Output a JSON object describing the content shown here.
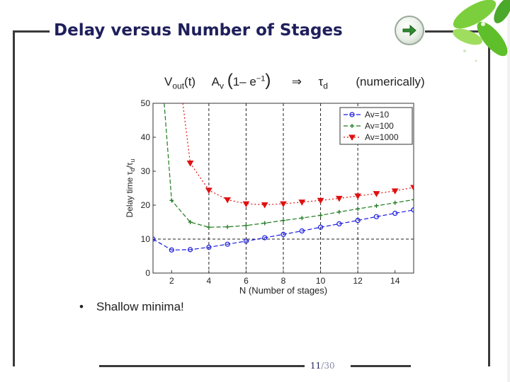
{
  "slide": {
    "title": "Delay versus Number of Stages",
    "formula": {
      "vout": "V",
      "vout_sub": "out",
      "t_arg": "(t)",
      "av": "A",
      "av_sub": "v",
      "paren_open": "(",
      "one_minus": "1– e",
      "exp": "−1",
      "paren_close": ")",
      "arrow": "⇒",
      "tau": "τ",
      "tau_sub": "d",
      "numerically": "(numerically)"
    },
    "bullet_text": "Shallow minima!",
    "page_current": "11",
    "page_sep": "/",
    "page_total": "30",
    "nav_icon": "arrow-right-icon",
    "accent_color": "#2e8b2e"
  },
  "chart_data": {
    "type": "line",
    "xlabel": "N (Number of stages)",
    "ylabel_main": "Delay time τ",
    "ylabel_sub1": "d",
    "ylabel_slash": "/τ",
    "ylabel_sub2": "u",
    "xlim": [
      1,
      15
    ],
    "ylim": [
      0,
      50
    ],
    "xticks": [
      2,
      4,
      6,
      8,
      10,
      12,
      14
    ],
    "yticks": [
      0,
      10,
      20,
      30,
      40,
      50
    ],
    "x_gridlines": [
      4,
      6,
      8,
      10,
      12
    ],
    "y_gridlines": [
      10
    ],
    "legend_position": "top-right",
    "series": [
      {
        "name": "Av=10",
        "color": "#1a1adf",
        "marker": "circle",
        "dash": "6,3",
        "x": [
          1,
          2,
          3,
          4,
          5,
          6,
          7,
          8,
          9,
          10,
          11,
          12,
          13,
          14,
          15
        ],
        "y": [
          10.0,
          6.8,
          6.9,
          7.6,
          8.5,
          9.4,
          10.4,
          11.4,
          12.4,
          13.5,
          14.5,
          15.5,
          16.6,
          17.6,
          18.6
        ]
      },
      {
        "name": "Av=100",
        "color": "#1e7a1e",
        "marker": "star",
        "dash": "6,3",
        "x": [
          1.6,
          2,
          3,
          4,
          5,
          6,
          7,
          8,
          9,
          10,
          11,
          12,
          13,
          14,
          15
        ],
        "y": [
          50,
          21.4,
          15.0,
          13.5,
          13.6,
          14.0,
          14.7,
          15.5,
          16.2,
          17.0,
          18.0,
          18.9,
          19.8,
          20.7,
          21.6
        ]
      },
      {
        "name": "Av=1000",
        "color": "#e01010",
        "marker": "triangle-down",
        "dash": "2,3",
        "x": [
          2.6,
          3,
          4,
          5,
          6,
          7,
          8,
          9,
          10,
          11,
          12,
          13,
          14,
          15
        ],
        "y": [
          50,
          32.4,
          24.4,
          21.6,
          20.4,
          20.1,
          20.4,
          20.9,
          21.4,
          22.0,
          22.7,
          23.4,
          24.2,
          25.2
        ]
      }
    ]
  }
}
